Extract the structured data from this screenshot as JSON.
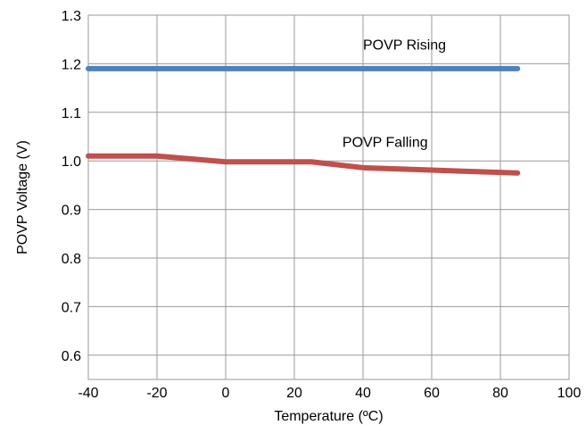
{
  "chart_data": {
    "type": "line",
    "xlabel": "Temperature (ºC)",
    "ylabel": "POVP  Voltage (V)",
    "xlim": [
      -40,
      100
    ],
    "ylim": [
      0.55,
      1.3
    ],
    "x_ticks": [
      -40,
      -20,
      0,
      20,
      40,
      60,
      80,
      100
    ],
    "y_ticks": [
      0.6,
      0.7,
      0.8,
      0.9,
      1.0,
      1.1,
      1.2,
      1.3
    ],
    "x_tick_labels": [
      "-40",
      "-20",
      "0",
      "20",
      "40",
      "60",
      "80",
      "100"
    ],
    "y_tick_labels": [
      "0.6",
      "0.7",
      "0.8",
      "0.9",
      "1.0",
      "1.1",
      "1.2",
      "1.3"
    ],
    "grid": true,
    "series": [
      {
        "name": "POVP Rising",
        "color": "#4f81bd",
        "x": [
          -40,
          -20,
          0,
          25,
          40,
          60,
          85
        ],
        "y": [
          1.19,
          1.19,
          1.19,
          1.19,
          1.19,
          1.19,
          1.19
        ]
      },
      {
        "name": "POVP Falling",
        "color": "#c0504d",
        "x": [
          -40,
          -20,
          0,
          25,
          40,
          60,
          85
        ],
        "y": [
          1.01,
          1.01,
          0.998,
          0.998,
          0.986,
          0.981,
          0.975
        ]
      }
    ],
    "annotations": [
      {
        "text": "POVP Rising",
        "x": 40,
        "y": 1.24
      },
      {
        "text": "POVP Falling",
        "x": 34,
        "y": 1.04
      }
    ]
  }
}
